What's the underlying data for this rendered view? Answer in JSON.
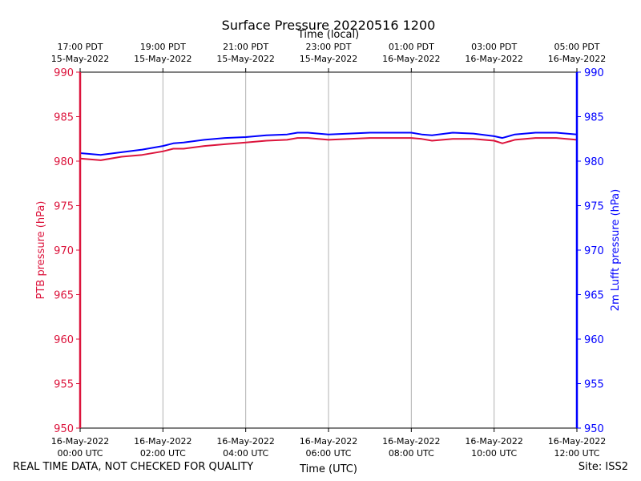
{
  "footer": {
    "quality_note": "REAL TIME DATA, NOT CHECKED FOR QUALITY",
    "site": "Site: ISS2"
  },
  "chart_data": {
    "type": "line",
    "title": "Surface Pressure 20220516 1200",
    "xlabel_bottom": "Time (UTC)",
    "xlabel_top": "Time (local)",
    "ylabel_left": "PTB pressure (hPa)",
    "ylabel_right": "2m Lufft pressure (hPa)",
    "x_unit": "hours since 16-May-2022 00:00 UTC",
    "xlim": [
      0,
      12
    ],
    "ylim_left": [
      950,
      990
    ],
    "ylim_right": [
      950,
      990
    ],
    "grid": "vertical",
    "colors": {
      "left_axis": "#dc143c",
      "right_axis": "#0000ff"
    },
    "y_ticks": [
      950,
      955,
      960,
      965,
      970,
      975,
      980,
      985,
      990
    ],
    "bottom_ticks": [
      {
        "x": 0,
        "line1": "16-May-2022",
        "line2": "00:00 UTC"
      },
      {
        "x": 2,
        "line1": "16-May-2022",
        "line2": "02:00 UTC"
      },
      {
        "x": 4,
        "line1": "16-May-2022",
        "line2": "04:00 UTC"
      },
      {
        "x": 6,
        "line1": "16-May-2022",
        "line2": "06:00 UTC"
      },
      {
        "x": 8,
        "line1": "16-May-2022",
        "line2": "08:00 UTC"
      },
      {
        "x": 10,
        "line1": "16-May-2022",
        "line2": "10:00 UTC"
      },
      {
        "x": 12,
        "line1": "16-May-2022",
        "line2": "12:00 UTC"
      }
    ],
    "top_ticks": [
      {
        "x": 0,
        "line1": "17:00 PDT",
        "line2": "15-May-2022"
      },
      {
        "x": 2,
        "line1": "19:00 PDT",
        "line2": "15-May-2022"
      },
      {
        "x": 4,
        "line1": "21:00 PDT",
        "line2": "15-May-2022"
      },
      {
        "x": 6,
        "line1": "23:00 PDT",
        "line2": "15-May-2022"
      },
      {
        "x": 8,
        "line1": "01:00 PDT",
        "line2": "16-May-2022"
      },
      {
        "x": 10,
        "line1": "03:00 PDT",
        "line2": "16-May-2022"
      },
      {
        "x": 12,
        "line1": "05:00 PDT",
        "line2": "16-May-2022"
      }
    ],
    "series": [
      {
        "color": "#dc143c",
        "axis": "left",
        "x": [
          0,
          0.5,
          1,
          1.5,
          2,
          2.25,
          2.5,
          3,
          3.5,
          4,
          4.5,
          5,
          5.25,
          5.5,
          6,
          6.5,
          7,
          7.5,
          8,
          8.25,
          8.5,
          9,
          9.5,
          10,
          10.2,
          10.5,
          11,
          11.5,
          12
        ],
        "y": [
          980.3,
          980.1,
          980.5,
          980.7,
          981.1,
          981.4,
          981.4,
          981.7,
          981.9,
          982.1,
          982.3,
          982.4,
          982.6,
          982.6,
          982.4,
          982.5,
          982.6,
          982.6,
          982.6,
          982.5,
          982.3,
          982.5,
          982.5,
          982.3,
          982.0,
          982.4,
          982.6,
          982.6,
          982.4
        ]
      },
      {
        "color": "#0000ff",
        "axis": "right",
        "x": [
          0,
          0.5,
          1,
          1.5,
          2,
          2.25,
          2.5,
          3,
          3.5,
          4,
          4.5,
          5,
          5.25,
          5.5,
          6,
          6.5,
          7,
          7.5,
          8,
          8.25,
          8.5,
          9,
          9.5,
          10,
          10.2,
          10.5,
          11,
          11.5,
          12
        ],
        "y": [
          980.9,
          980.7,
          981.0,
          981.3,
          981.7,
          982.0,
          982.1,
          982.4,
          982.6,
          982.7,
          982.9,
          983.0,
          983.2,
          983.2,
          983.0,
          983.1,
          983.2,
          983.2,
          983.2,
          983.0,
          982.9,
          983.2,
          983.1,
          982.8,
          982.6,
          983.0,
          983.2,
          983.2,
          983.0
        ]
      }
    ]
  }
}
